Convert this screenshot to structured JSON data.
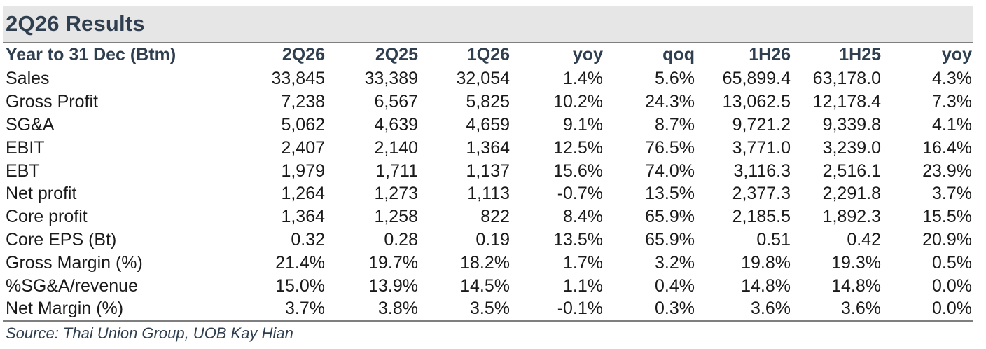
{
  "title": "2Q26 Results",
  "columns": [
    "Year to 31 Dec (Btm)",
    "2Q26",
    "2Q25",
    "1Q26",
    "yoy",
    "qoq",
    "1H26",
    "1H25",
    "yoy"
  ],
  "rows": [
    [
      "Sales",
      "33,845",
      "33,389",
      "32,054",
      "1.4%",
      "5.6%",
      "65,899.4",
      "63,178.0",
      "4.3%"
    ],
    [
      "Gross Profit",
      "7,238",
      "6,567",
      "5,825",
      "10.2%",
      "24.3%",
      "13,062.5",
      "12,178.4",
      "7.3%"
    ],
    [
      "SG&A",
      "5,062",
      "4,639",
      "4,659",
      "9.1%",
      "8.7%",
      "9,721.2",
      "9,339.8",
      "4.1%"
    ],
    [
      "EBIT",
      "2,407",
      "2,140",
      "1,364",
      "12.5%",
      "76.5%",
      "3,771.0",
      "3,239.0",
      "16.4%"
    ],
    [
      "EBT",
      "1,979",
      "1,711",
      "1,137",
      "15.6%",
      "74.0%",
      "3,116.3",
      "2,516.1",
      "23.9%"
    ],
    [
      "Net profit",
      "1,264",
      "1,273",
      "1,113",
      "-0.7%",
      "13.5%",
      "2,377.3",
      "2,291.8",
      "3.7%"
    ],
    [
      "Core profit",
      "1,364",
      "1,258",
      "822",
      "8.4%",
      "65.9%",
      "2,185.5",
      "1,892.3",
      "15.5%"
    ],
    [
      "Core EPS (Bt)",
      "0.32",
      "0.28",
      "0.19",
      "13.5%",
      "65.9%",
      "0.51",
      "0.42",
      "20.9%"
    ],
    [
      "Gross Margin (%)",
      "21.4%",
      "19.7%",
      "18.2%",
      "1.7%",
      "3.2%",
      "19.8%",
      "19.3%",
      "0.5%"
    ],
    [
      "%SG&A/revenue",
      "15.0%",
      "13.9%",
      "14.5%",
      "1.1%",
      "0.4%",
      "14.8%",
      "14.8%",
      "0.0%"
    ],
    [
      "Net Margin (%)",
      "3.7%",
      "3.8%",
      "3.5%",
      "-0.1%",
      "0.3%",
      "3.6%",
      "3.6%",
      "0.0%"
    ]
  ],
  "source": "Source: Thai Union Group, UOB Kay Hian"
}
